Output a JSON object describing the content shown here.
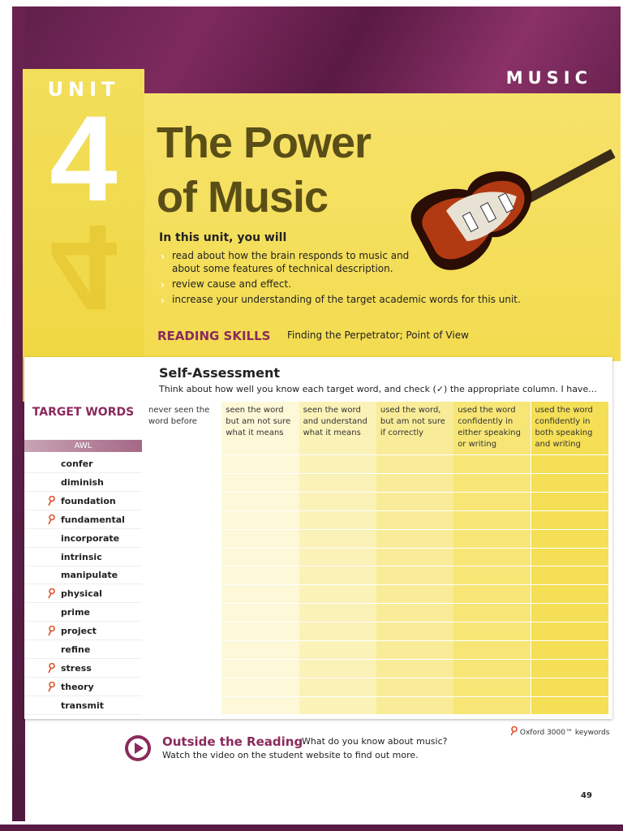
{
  "header": {
    "section": "MUSIC"
  },
  "unit": {
    "label": "UNIT",
    "number": "4"
  },
  "title": {
    "lines": [
      "The Power",
      "of Music"
    ]
  },
  "intro": {
    "heading": "In this unit, you will",
    "items": [
      "read about how the brain responds to music and about some features of technical description.",
      "review cause and effect.",
      "increase your understanding of the target academic words for this unit."
    ]
  },
  "reading_skills": {
    "label": "READING SKILLS",
    "text": "Finding the Perpetrator; Point of View"
  },
  "self_assessment": {
    "title": "Self-Assessment",
    "instructions": "Think about how well you know each target word, and check (✓) the appropriate column. I have...",
    "columns": [
      "never seen the word before",
      "seen the word but am not sure what it means",
      "seen the word and understand what it means",
      "used the word, but am not sure if correctly",
      "used the word confidently in either speaking or writing",
      "used the word confidently in both speaking and writing"
    ]
  },
  "target_words": {
    "heading": "TARGET WORDS",
    "list_label": "AWL",
    "words": [
      {
        "word": "confer",
        "keyword": false
      },
      {
        "word": "diminish",
        "keyword": false
      },
      {
        "word": "foundation",
        "keyword": true
      },
      {
        "word": "fundamental",
        "keyword": true
      },
      {
        "word": "incorporate",
        "keyword": false
      },
      {
        "word": "intrinsic",
        "keyword": false
      },
      {
        "word": "manipulate",
        "keyword": false
      },
      {
        "word": "physical",
        "keyword": true
      },
      {
        "word": "prime",
        "keyword": false
      },
      {
        "word": "project",
        "keyword": true
      },
      {
        "word": "refine",
        "keyword": false
      },
      {
        "word": "stress",
        "keyword": true
      },
      {
        "word": "theory",
        "keyword": true
      },
      {
        "word": "transmit",
        "keyword": false
      }
    ]
  },
  "keyword_legend": "Oxford 3000™ keywords",
  "outside_reading": {
    "title": "Outside the Reading",
    "question": "What do you know about music?",
    "text": "Watch the video on the student website to find out more."
  },
  "page_number": "49"
}
